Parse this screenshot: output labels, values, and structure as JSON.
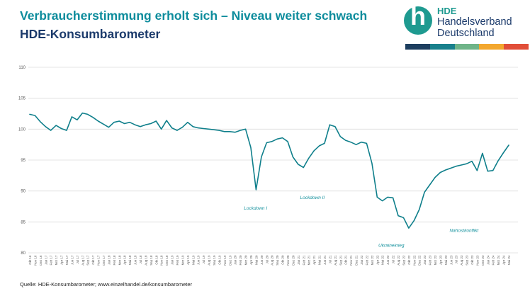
{
  "header": {
    "title": "Verbraucherstimmung erholt sich – Niveau weiter schwach",
    "subtitle": "HDE-Konsumbarometer"
  },
  "logo": {
    "monogram": "h",
    "name": "HDE",
    "org_line1": "Handelsverband",
    "org_line2": "Deutschland",
    "bar_colors": [
      "#1d3e5f",
      "#19808c",
      "#6fb488",
      "#f3a72e",
      "#e14e38"
    ]
  },
  "colors": {
    "title_teal": "#0d8c9c",
    "navy": "#1b3a6b",
    "line": "#0f7f8b",
    "grid": "#dcdcdc",
    "axis_text": "#595959",
    "annotation": "#14919d",
    "logo_circle": "#1e9a90"
  },
  "footer": {
    "source": "Quelle: HDE-Konsumbarometer; www.einzelhandel.de/konsumbarometer"
  },
  "chart_data": {
    "type": "line",
    "title": "HDE-Konsumbarometer",
    "xlabel": "",
    "ylabel": "",
    "ylim": [
      80,
      110
    ],
    "yticks": [
      80,
      85,
      90,
      95,
      100,
      105,
      110
    ],
    "grid": "horizontal",
    "legend": "none",
    "x": [
      "Okt 16",
      "Nov 16",
      "Dez 16",
      "Jan 17",
      "Feb 17",
      "Mrz 17",
      "Apr 17",
      "Mai 17",
      "Jun 17",
      "Jul 17",
      "Aug 17",
      "Sep 17",
      "Okt 17",
      "Nov 17",
      "Dez 17",
      "Jan 18",
      "Feb 18",
      "Mrz 18",
      "Apr 18",
      "Mai 18",
      "Jun 18",
      "Jul 18",
      "Aug 18",
      "Sep 18",
      "Okt 18",
      "Nov 18",
      "Dez 18",
      "Jan 19",
      "Feb 19",
      "Mrz 19",
      "Apr 19",
      "Mai 19",
      "Jun 19",
      "Jul 19",
      "Aug 19",
      "Sep 19",
      "Okt 19",
      "Nov 19",
      "Dez 19",
      "Jan 20",
      "Feb 20",
      "Mrz 20",
      "Apr 20",
      "Mai 20",
      "Jun 20",
      "Jul 20",
      "Aug 20",
      "Sep 20",
      "Okt 20",
      "Nov 20",
      "Dez 20",
      "Jan 21",
      "Feb 21",
      "Mrz 21",
      "Apr 21",
      "Mai 21",
      "Jun 21",
      "Jul 21",
      "Aug 21",
      "Sep 21",
      "Okt 21",
      "Nov 21",
      "Dez 21",
      "Jan 22",
      "Feb 22",
      "Mrz 22",
      "Apr 22",
      "Mai 22",
      "Jun 22",
      "Jul 22",
      "Aug 22",
      "Sep 22",
      "Okt 22",
      "Nov 22",
      "Dez 22",
      "Jan 23",
      "Feb 23",
      "Mrz 23",
      "Apr 23",
      "Mai 23",
      "Jun 23",
      "Jul 23",
      "Aug 23",
      "Sep 23",
      "Okt 23",
      "Nov 23",
      "Dez 23",
      "Jan 24",
      "Feb 24",
      "Mrz 24",
      "Apr 24",
      "Mai 24"
    ],
    "values": [
      102.4,
      102.2,
      101.2,
      100.4,
      99.8,
      100.6,
      100.1,
      99.8,
      102.0,
      101.5,
      102.6,
      102.4,
      101.9,
      101.3,
      100.8,
      100.3,
      101.1,
      101.3,
      100.9,
      101.1,
      100.7,
      100.4,
      100.7,
      100.9,
      101.3,
      100.0,
      101.4,
      100.2,
      99.8,
      100.3,
      101.1,
      100.4,
      100.2,
      100.1,
      100.0,
      99.9,
      99.8,
      99.6,
      99.6,
      99.5,
      99.8,
      100.0,
      97.0,
      90.2,
      95.5,
      97.8,
      98.0,
      98.4,
      98.6,
      98.0,
      95.5,
      94.3,
      93.8,
      95.3,
      96.5,
      97.3,
      97.7,
      100.7,
      100.4,
      98.8,
      98.2,
      97.9,
      97.5,
      97.9,
      97.7,
      94.5,
      89.0,
      88.4,
      89.0,
      88.9,
      86.0,
      85.7,
      84.0,
      85.2,
      87.0,
      89.8,
      91.0,
      92.2,
      93.0,
      93.4,
      93.7,
      94.0,
      94.2,
      94.4,
      94.8,
      93.3,
      96.1,
      93.2,
      93.3,
      94.9,
      96.2,
      97.4
    ],
    "annotations": [
      {
        "text": "Lockdown I",
        "x": 42.9,
        "y": 87.0
      },
      {
        "text": "Lockdown II",
        "x": 53.7,
        "y": 88.7
      },
      {
        "text": "Ukrainekrieg",
        "x": 68.7,
        "y": 81.0
      },
      {
        "text": "Nahostkonflikt",
        "x": 82.5,
        "y": 83.4
      }
    ]
  }
}
